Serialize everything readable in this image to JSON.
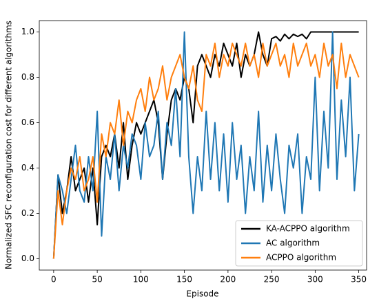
{
  "chart_data": {
    "type": "line",
    "x_label": "Episode",
    "y_label": "Normalized SFC reconfiguration cost for different algorithms",
    "x": [
      0,
      5,
      10,
      15,
      20,
      25,
      30,
      35,
      40,
      45,
      50,
      55,
      60,
      65,
      70,
      75,
      80,
      85,
      90,
      95,
      100,
      105,
      110,
      115,
      120,
      125,
      130,
      135,
      140,
      145,
      150,
      155,
      160,
      165,
      170,
      175,
      180,
      185,
      190,
      195,
      200,
      205,
      210,
      215,
      220,
      225,
      230,
      235,
      240,
      245,
      250,
      255,
      260,
      265,
      270,
      275,
      280,
      285,
      290,
      295,
      300,
      305,
      310,
      315,
      320,
      325,
      330,
      335,
      340,
      345,
      350
    ],
    "series": [
      {
        "name": "KA-ACPPO algorithm",
        "color": "#000000",
        "values": [
          0,
          0.37,
          0.2,
          0.3,
          0.45,
          0.3,
          0.35,
          0.4,
          0.25,
          0.4,
          0.15,
          0.45,
          0.5,
          0.45,
          0.55,
          0.4,
          0.6,
          0.35,
          0.5,
          0.6,
          0.55,
          0.6,
          0.65,
          0.7,
          0.6,
          0.35,
          0.55,
          0.7,
          0.75,
          0.7,
          0.8,
          0.75,
          0.6,
          0.85,
          0.9,
          0.85,
          0.8,
          0.9,
          0.85,
          0.95,
          0.9,
          0.85,
          0.95,
          0.8,
          0.9,
          0.85,
          0.9,
          1.0,
          0.9,
          0.85,
          0.97,
          0.98,
          0.96,
          0.99,
          0.97,
          0.99,
          0.98,
          0.99,
          0.97,
          1.0,
          1.0,
          1.0,
          1.0,
          1.0,
          1.0,
          1.0,
          1.0,
          1.0,
          1.0,
          1.0,
          1.0
        ]
      },
      {
        "name": "AC algorithm",
        "color": "#1f77b4",
        "values": [
          0,
          0.37,
          0.3,
          0.2,
          0.35,
          0.5,
          0.3,
          0.25,
          0.45,
          0.3,
          0.65,
          0.1,
          0.45,
          0.35,
          0.55,
          0.3,
          0.5,
          0.4,
          0.55,
          0.5,
          0.35,
          0.6,
          0.45,
          0.5,
          0.65,
          0.35,
          0.6,
          0.5,
          0.75,
          0.45,
          1.0,
          0.45,
          0.2,
          0.45,
          0.3,
          0.65,
          0.35,
          0.6,
          0.3,
          0.55,
          0.25,
          0.6,
          0.35,
          0.5,
          0.2,
          0.45,
          0.3,
          0.65,
          0.25,
          0.5,
          0.3,
          0.55,
          0.35,
          0.2,
          0.5,
          0.4,
          0.55,
          0.2,
          0.45,
          0.35,
          0.8,
          0.3,
          0.65,
          0.4,
          1.0,
          0.35,
          0.7,
          0.45,
          0.8,
          0.3,
          0.55
        ]
      },
      {
        "name": "ACPPO algorithm",
        "color": "#ff7f0e",
        "values": [
          0,
          0.3,
          0.15,
          0.3,
          0.4,
          0.35,
          0.45,
          0.3,
          0.35,
          0.45,
          0.25,
          0.55,
          0.45,
          0.6,
          0.55,
          0.7,
          0.5,
          0.65,
          0.6,
          0.7,
          0.75,
          0.65,
          0.8,
          0.7,
          0.75,
          0.85,
          0.7,
          0.8,
          0.85,
          0.9,
          0.8,
          0.75,
          0.85,
          0.7,
          0.65,
          0.9,
          0.85,
          0.95,
          0.8,
          0.9,
          0.85,
          0.95,
          0.9,
          0.85,
          0.95,
          0.85,
          0.9,
          0.8,
          0.95,
          0.85,
          0.9,
          0.95,
          0.85,
          0.9,
          0.8,
          0.95,
          0.85,
          0.9,
          0.95,
          0.85,
          0.9,
          0.8,
          0.95,
          0.85,
          0.9,
          0.75,
          0.95,
          0.8,
          0.9,
          0.85,
          0.8
        ]
      }
    ],
    "xlim": [
      -16.5,
      359
    ],
    "ylim": [
      -0.05,
      1.05
    ],
    "xticks": [
      0,
      50,
      100,
      150,
      200,
      250,
      300,
      350
    ],
    "yticks": [
      {
        "value": 0,
        "label": "0.0"
      },
      0.2,
      0.4,
      0.6,
      0.8,
      {
        "value": 1,
        "label": "1.0"
      }
    ],
    "legend": "lower right"
  }
}
